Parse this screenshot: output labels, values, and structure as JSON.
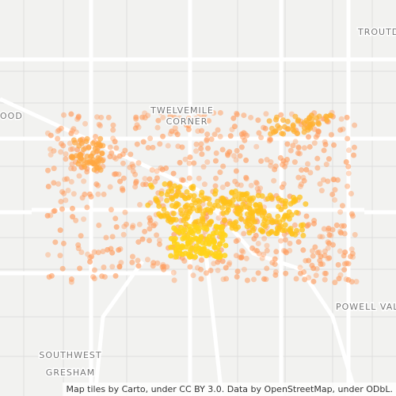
{
  "labels": {
    "troutdale": "TROUTD",
    "wood": "OOD",
    "twelvemile_1": "TWELVEMILE",
    "twelvemile_2": "CORNER",
    "powell_valley": "POWELL VAL",
    "sw_gresham_1": "SOUTHWEST",
    "sw_gresham_2": "GRESHAM"
  },
  "attribution": "Map tiles by Carto, under CC BY 3.0. Data by OpenStreetMap, under ODbL."
}
